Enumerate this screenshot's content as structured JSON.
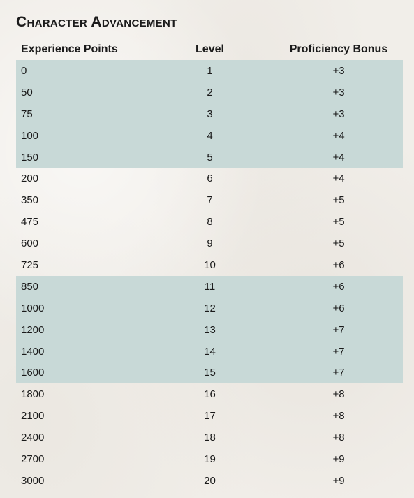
{
  "title": "Character Advancement",
  "colors": {
    "band": "#c8d9d7",
    "background": "#f1eee9"
  },
  "table": {
    "headers": {
      "xp": "Experience Points",
      "level": "Level",
      "bonus": "Proficiency Bonus"
    },
    "rows": [
      {
        "xp": "0",
        "level": "1",
        "bonus": "+3"
      },
      {
        "xp": "50",
        "level": "2",
        "bonus": "+3"
      },
      {
        "xp": "75",
        "level": "3",
        "bonus": "+3"
      },
      {
        "xp": "100",
        "level": "4",
        "bonus": "+4"
      },
      {
        "xp": "150",
        "level": "5",
        "bonus": "+4"
      },
      {
        "xp": "200",
        "level": "6",
        "bonus": "+4"
      },
      {
        "xp": "350",
        "level": "7",
        "bonus": "+5"
      },
      {
        "xp": "475",
        "level": "8",
        "bonus": "+5"
      },
      {
        "xp": "600",
        "level": "9",
        "bonus": "+5"
      },
      {
        "xp": "725",
        "level": "10",
        "bonus": "+6"
      },
      {
        "xp": "850",
        "level": "11",
        "bonus": "+6"
      },
      {
        "xp": "1000",
        "level": "12",
        "bonus": "+6"
      },
      {
        "xp": "1200",
        "level": "13",
        "bonus": "+7"
      },
      {
        "xp": "1400",
        "level": "14",
        "bonus": "+7"
      },
      {
        "xp": "1600",
        "level": "15",
        "bonus": "+7"
      },
      {
        "xp": "1800",
        "level": "16",
        "bonus": "+8"
      },
      {
        "xp": "2100",
        "level": "17",
        "bonus": "+8"
      },
      {
        "xp": "2400",
        "level": "18",
        "bonus": "+8"
      },
      {
        "xp": "2700",
        "level": "19",
        "bonus": "+9"
      },
      {
        "xp": "3000",
        "level": "20",
        "bonus": "+9"
      }
    ]
  }
}
